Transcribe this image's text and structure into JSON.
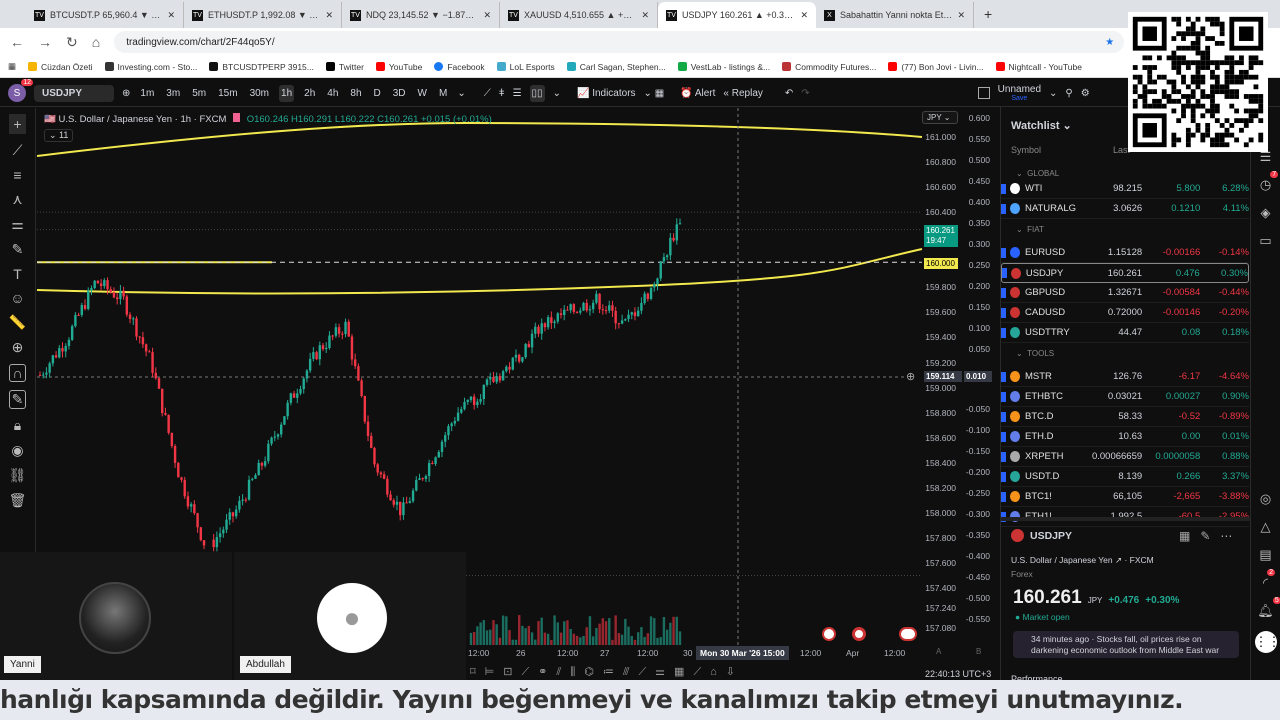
{
  "browser": {
    "tabs": [
      {
        "label": "BTCUSDT.P 65,960.4 ▼ −4.11%",
        "active": false
      },
      {
        "label": "ETHUSDT.P 1,992.08 ▼ −3.26%",
        "active": false
      },
      {
        "label": "NDQ 23,145.52 ▼ −1.87% Unn",
        "active": false
      },
      {
        "label": "XAUUSD 4,510.655 ▲ +3.03% U",
        "active": false
      },
      {
        "label": "USDJPY 160.261 ▲ +0.3% Unn",
        "active": true
      },
      {
        "label": "Sabahattin Yanni nokta Etehe (",
        "active": false
      }
    ],
    "url": "tradingview.com/chart/2F44qo5Y/",
    "bookmarks": [
      "Cüzdan Özeti",
      "Investing.com - Sto...",
      "BTCUSDTPERP 3915...",
      "Twitter",
      "YouTube",
      "Facebook",
      "LoL Esports",
      "Carl Sagan, Stephen...",
      "VestLab - listings &...",
      "Commodity Futures...",
      "(77) Bon Jovi - Livin...",
      "Nightcall - YouTube"
    ],
    "bookmark_colors": [
      "#f5b400",
      "#333",
      "#111",
      "#000",
      "#f00",
      "#1877f2",
      "#4ac",
      "#2ab",
      "#1a4",
      "#b33",
      "#f00",
      "#f00"
    ]
  },
  "toolbar": {
    "avatar": "S",
    "avatar_badge": "12",
    "symbol": "USDJPY",
    "timeframes": [
      "1m",
      "3m",
      "5m",
      "15m",
      "30m",
      "1h",
      "2h",
      "4h",
      "8h",
      "D",
      "3D",
      "W",
      "M"
    ],
    "active_timeframe": "1h",
    "indicators": "Indicators",
    "alert": "Alert",
    "replay": "Replay",
    "layout_name": "Unnamed",
    "layout_save": "Save"
  },
  "chart": {
    "title": "U.S. Dollar / Japanese Yen · 1h · FXCM",
    "ohlc": "O160.246 H160.291 L160.222 C160.261 +0.015 (+0.01%)",
    "indicator_count": "11",
    "currency": "JPY",
    "price_ticks": [
      "161.000",
      "160.800",
      "160.600",
      "160.400",
      "159.800",
      "159.600",
      "159.400",
      "159.200",
      "159.000",
      "158.800",
      "158.600",
      "158.400",
      "158.200",
      "158.000",
      "157.800",
      "157.600",
      "157.400",
      "157.240",
      "157.080"
    ],
    "secondary_ticks": [
      "0.600",
      "0.550",
      "0.500",
      "0.450",
      "0.400",
      "0.350",
      "0.300",
      "0.250",
      "0.200",
      "0.150",
      "0.100",
      "0.050",
      "-0.050",
      "-0.100",
      "-0.150",
      "-0.200",
      "-0.250",
      "-0.300",
      "-0.350",
      "-0.400",
      "-0.450",
      "-0.500",
      "-0.550"
    ],
    "last_price": "160.261",
    "countdown": "19:47",
    "line_price": "160.000",
    "crosshair_price": "159.114",
    "crosshair_secondary": "0.010",
    "crosshair_time": "Mon 30 Mar '26  15:00",
    "time_ticks": [
      "12:00",
      "26",
      "12:00",
      "27",
      "12:00",
      "30",
      "12:00",
      "Apr",
      "12:00"
    ],
    "scale_buttons": [
      "A",
      "B"
    ],
    "clock": "22:40:13 UTC+3",
    "colors": {
      "up": "#22ab94",
      "down": "#f23645",
      "trend": "#f2e94e",
      "hline": "#f2e94e"
    },
    "price_path": [
      159.1,
      159.4,
      159.85,
      159.7,
      159.2,
      158.3,
      157.7,
      158.0,
      158.4,
      158.9,
      159.3,
      159.5,
      158.4,
      158.0,
      158.4,
      158.8,
      159.0,
      159.2,
      159.5,
      159.6,
      159.7,
      159.5,
      159.8,
      160.35
    ]
  },
  "watchlist": {
    "title": "Watchlist",
    "col_symbol": "Symbol",
    "col_last": "Last",
    "sections": [
      {
        "name": "GLOBAL",
        "rows": [
          {
            "symbol": "WTI",
            "last": "98.215",
            "chg": "5.800",
            "pct": "6.28%",
            "dir": "up"
          },
          {
            "symbol": "NATURALG",
            "last": "3.0626",
            "chg": "0.1210",
            "pct": "4.11%",
            "dir": "up"
          }
        ]
      },
      {
        "name": "FIAT",
        "rows": [
          {
            "symbol": "EURUSD",
            "last": "1.15128",
            "chg": "-0.00166",
            "pct": "-0.14%",
            "dir": "down"
          },
          {
            "symbol": "USDJPY",
            "last": "160.261",
            "chg": "0.476",
            "pct": "0.30%",
            "dir": "up",
            "selected": true
          },
          {
            "symbol": "GBPUSD",
            "last": "1.32671",
            "chg": "-0.00584",
            "pct": "-0.44%",
            "dir": "down"
          },
          {
            "symbol": "CADUSD",
            "last": "0.72000",
            "chg": "-0.00146",
            "pct": "-0.20%",
            "dir": "down"
          },
          {
            "symbol": "USDTTRY",
            "last": "44.47",
            "chg": "0.08",
            "pct": "0.18%",
            "dir": "up"
          }
        ]
      },
      {
        "name": "TOOLS",
        "rows": [
          {
            "symbol": "MSTR",
            "last": "126.76",
            "chg": "-6.17",
            "pct": "-4.64%",
            "dir": "down"
          },
          {
            "symbol": "ETHBTC",
            "last": "0.03021",
            "chg": "0.00027",
            "pct": "0.90%",
            "dir": "up"
          },
          {
            "symbol": "BTC.D",
            "last": "58.33",
            "chg": "-0.52",
            "pct": "-0.89%",
            "dir": "down"
          },
          {
            "symbol": "ETH.D",
            "last": "10.63",
            "chg": "0.00",
            "pct": "0.01%",
            "dir": "up"
          },
          {
            "symbol": "XRPETH",
            "last": "0.00066659",
            "chg": "0.0000058",
            "pct": "0.88%",
            "dir": "up"
          },
          {
            "symbol": "USDT.D",
            "last": "8.139",
            "chg": "0.266",
            "pct": "3.37%",
            "dir": "up"
          },
          {
            "symbol": "BTC1!",
            "last": "66,105",
            "chg": "-2,665",
            "pct": "-3.88%",
            "dir": "down"
          },
          {
            "symbol": "ETH1!",
            "last": "1,992.5",
            "chg": "-60.5",
            "pct": "-2.95%",
            "dir": "down"
          }
        ]
      }
    ]
  },
  "details": {
    "symbol": "USDJPY",
    "name": "U.S. Dollar / Japanese Yen",
    "exchange": "· FXCM",
    "type": "Forex",
    "price": "160.261",
    "currency": "JPY",
    "change": "+0.476",
    "change_pct": "+0.30%",
    "status": "Market open",
    "news": "34 minutes ago · Stocks fall, oil prices rise on darkening economic outlook from Middle East war",
    "performance": "Performance"
  },
  "right_badges": {
    "notes": "7",
    "streams": "2",
    "alerts": "5"
  },
  "video": {
    "participants": [
      "Yanni",
      "Abdullah"
    ]
  },
  "caption": "hanlığı kapsamında değildir. Yayını beğenmeyi ve kanalımızı takip etmeyi unutmayınız."
}
